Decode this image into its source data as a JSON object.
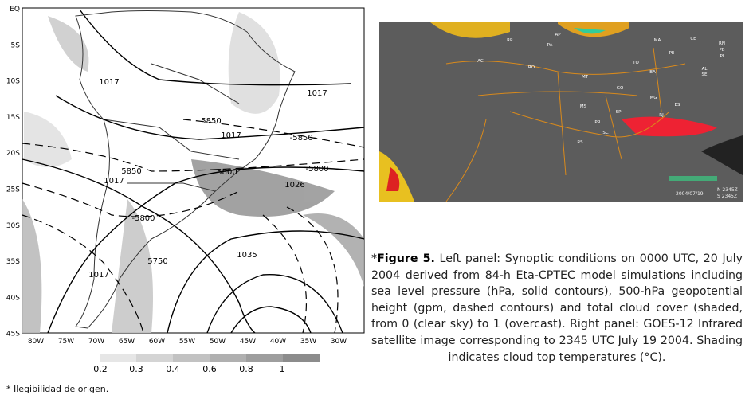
{
  "left_panel": {
    "lat_labels": [
      "EQ",
      "5S",
      "10S",
      "15S",
      "20S",
      "25S",
      "30S",
      "35S",
      "40S",
      "45S"
    ],
    "lon_labels": [
      "80W",
      "75W",
      "70W",
      "65W",
      "60W",
      "55W",
      "50W",
      "45W",
      "40W",
      "35W",
      "30W"
    ],
    "contour_labels": [
      "1017",
      "1017",
      "5850",
      "1017",
      "-5850-",
      "5850",
      "5800",
      "-5800",
      "1017",
      "1026",
      "-5800",
      "5750",
      "1035",
      "1017"
    ],
    "colorbar_labels": [
      "0.2",
      "0.3",
      "0.4",
      "0.6",
      "0.8",
      "1"
    ]
  },
  "right_panel": {
    "state_labels": [
      "RR",
      "AP",
      "PA",
      "MA",
      "CE",
      "RN",
      "PB",
      "PE",
      "PI",
      "AL",
      "SE",
      "AC",
      "RO",
      "TO",
      "BA",
      "MT",
      "GO",
      "MG",
      "ES",
      "MS",
      "SP",
      "RJ",
      "PR",
      "SC",
      "RS"
    ],
    "date": "2004/07/19",
    "times": [
      "N 2345Z",
      "S 2345Z"
    ]
  },
  "caption": {
    "marker": "*",
    "label": "Figure 5.",
    "text": "Left panel: Synoptic conditions on 0000 UTC, 20 July 2004 derived from 84-h Eta-CPTEC model simulations including sea level pressure (hPa, solid contours), 500-hPa geopotential height (gpm, dashed contours) and total cloud cover (shaded, from 0 (clear sky) to 1 (overcast). Right panel: GOES-12 Infrared satellite image corresponding to 2345 UTC July 19 2004. Shading indicates cloud top temperatures (°C)."
  },
  "footnote": "* Ilegibilidad de origen."
}
